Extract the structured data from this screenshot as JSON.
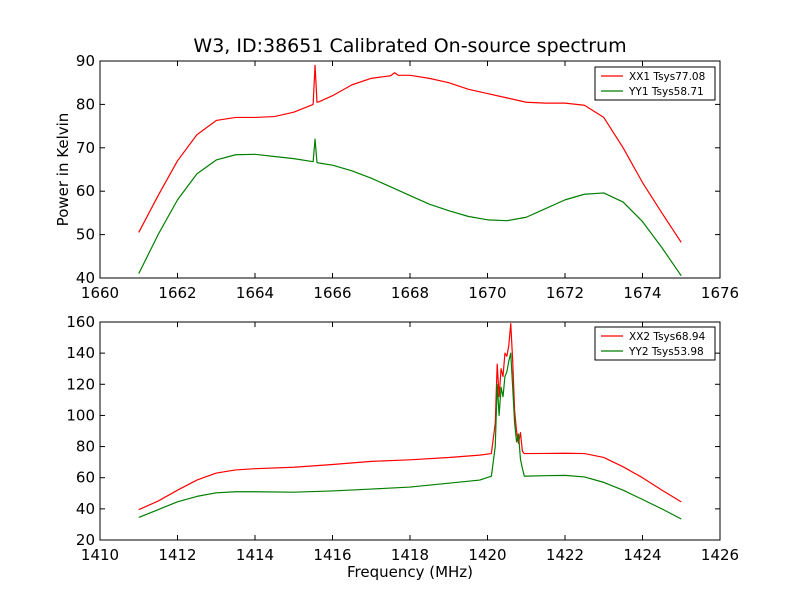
{
  "chart_data": [
    {
      "type": "line",
      "title": "W3, ID:38651 Calibrated On-source spectrum",
      "xlabel": "",
      "ylabel": "Power in Kelvin",
      "xlim": [
        1660,
        1676
      ],
      "ylim": [
        40,
        90
      ],
      "xticks": [
        "1660",
        "1662",
        "1664",
        "1666",
        "1668",
        "1670",
        "1672",
        "1674",
        "1676"
      ],
      "yticks": [
        "40",
        "50",
        "60",
        "70",
        "80",
        "90"
      ],
      "grid": false,
      "legend_position": "top-right",
      "series": [
        {
          "name": "XX1 Tsys77.08",
          "color": "#ff0000",
          "x": [
            1661.0,
            1661.5,
            1662.0,
            1662.5,
            1663.0,
            1663.5,
            1664.0,
            1664.5,
            1665.0,
            1665.5,
            1665.55,
            1665.6,
            1665.65,
            1666.0,
            1666.5,
            1667.0,
            1667.5,
            1667.6,
            1667.7,
            1668.0,
            1668.5,
            1669.0,
            1669.5,
            1670.0,
            1670.5,
            1671.0,
            1671.5,
            1672.0,
            1672.5,
            1673.0,
            1673.5,
            1674.0,
            1674.5,
            1675.0
          ],
          "y": [
            50.5,
            59,
            67,
            73,
            76.3,
            77,
            77,
            77.2,
            78.2,
            80,
            89,
            80.5,
            80.6,
            82,
            84.5,
            86,
            86.6,
            87.3,
            86.7,
            86.7,
            86,
            85,
            83.5,
            82.5,
            81.5,
            80.5,
            80.3,
            80.3,
            79.8,
            77,
            70,
            62,
            55,
            48.2
          ]
        },
        {
          "name": "YY1 Tsys58.71",
          "color": "#007f00",
          "x": [
            1661.0,
            1661.5,
            1662.0,
            1662.5,
            1663.0,
            1663.5,
            1664.0,
            1664.5,
            1665.0,
            1665.5,
            1665.55,
            1665.6,
            1665.65,
            1666.0,
            1666.5,
            1667.0,
            1667.5,
            1668.0,
            1668.5,
            1669.0,
            1669.5,
            1670.0,
            1670.5,
            1671.0,
            1671.5,
            1672.0,
            1672.5,
            1673.0,
            1673.5,
            1674.0,
            1674.5,
            1675.0
          ],
          "y": [
            41,
            50,
            58,
            64,
            67.2,
            68.4,
            68.5,
            68,
            67.5,
            66.8,
            72,
            66.6,
            66.5,
            66,
            64.7,
            63,
            61,
            59,
            57,
            55.5,
            54.2,
            53.4,
            53.2,
            54,
            56,
            58,
            59.3,
            59.6,
            57.5,
            53,
            47,
            40.5
          ]
        }
      ]
    },
    {
      "type": "line",
      "title": "",
      "xlabel": "Frequency (MHz)",
      "ylabel": "",
      "xlim": [
        1410,
        1426
      ],
      "ylim": [
        20,
        160
      ],
      "xticks": [
        "1410",
        "1412",
        "1414",
        "1416",
        "1418",
        "1420",
        "1422",
        "1424",
        "1426"
      ],
      "yticks": [
        "20",
        "40",
        "60",
        "80",
        "100",
        "120",
        "140",
        "160"
      ],
      "grid": false,
      "legend_position": "top-right",
      "series": [
        {
          "name": "XX2 Tsys68.94",
          "color": "#ff0000",
          "x": [
            1411.0,
            1411.5,
            1412.0,
            1412.5,
            1413.0,
            1413.5,
            1414.0,
            1415.0,
            1416.0,
            1417.0,
            1418.0,
            1419.0,
            1419.8,
            1420.1,
            1420.2,
            1420.25,
            1420.3,
            1420.35,
            1420.4,
            1420.45,
            1420.5,
            1420.55,
            1420.6,
            1420.65,
            1420.7,
            1420.75,
            1420.8,
            1420.85,
            1420.9,
            1420.95,
            1421.0,
            1421.5,
            1422.0,
            1422.5,
            1423.0,
            1423.5,
            1424.0,
            1424.5,
            1425.0
          ],
          "y": [
            39.5,
            45,
            52,
            58.5,
            63,
            65,
            65.8,
            66.7,
            68.5,
            70.5,
            71.5,
            73,
            74.5,
            75.5,
            95,
            133,
            112,
            130,
            125,
            140,
            138,
            145,
            159,
            135,
            103,
            90,
            82,
            89,
            77,
            75.5,
            75.5,
            75.6,
            75.7,
            75.5,
            73,
            67,
            60,
            52,
            44.5
          ]
        },
        {
          "name": "YY2 Tsys53.98",
          "color": "#007f00",
          "x": [
            1411.0,
            1411.5,
            1412.0,
            1412.5,
            1413.0,
            1413.5,
            1414.0,
            1415.0,
            1416.0,
            1417.0,
            1418.0,
            1419.0,
            1419.8,
            1420.1,
            1420.2,
            1420.25,
            1420.3,
            1420.35,
            1420.4,
            1420.45,
            1420.5,
            1420.55,
            1420.6,
            1420.65,
            1420.7,
            1420.75,
            1420.8,
            1420.85,
            1420.9,
            1420.95,
            1421.0,
            1421.5,
            1422.0,
            1422.5,
            1423.0,
            1423.5,
            1424.0,
            1424.5,
            1425.0
          ],
          "y": [
            34.5,
            39.5,
            44.5,
            48,
            50.3,
            51,
            51,
            50.7,
            51.5,
            52.7,
            54,
            56.5,
            58.5,
            61,
            80,
            120,
            100,
            118,
            112,
            125,
            128,
            135,
            140,
            118,
            95,
            83,
            88,
            72,
            66,
            61,
            61,
            61.3,
            61.5,
            60.5,
            57,
            52,
            46,
            40,
            33.5
          ]
        }
      ]
    }
  ]
}
